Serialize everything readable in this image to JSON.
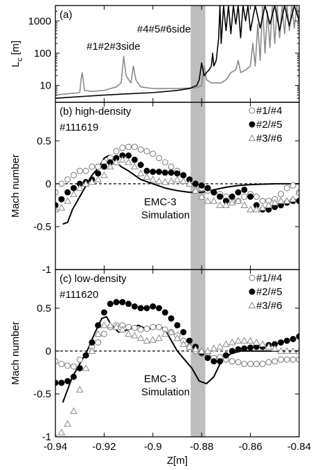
{
  "chart_data": [
    {
      "type": "line",
      "label": "(a)",
      "y_label": "L",
      "y_label_sub": "c",
      "y_label_unit": "[m]",
      "log_y": true,
      "ylim": [
        3,
        3000
      ],
      "yticks": [
        10,
        100,
        1000
      ],
      "xlim": [
        -0.94,
        -0.84
      ],
      "xticks": [
        -0.94,
        -0.92,
        -0.9,
        -0.88,
        -0.86,
        -0.84
      ],
      "highlight": [
        -0.8845,
        -0.8785
      ],
      "series": [
        {
          "name": "#1#2#3side",
          "color": "#8a8a8a",
          "x": [
            -0.94,
            -0.935,
            -0.93,
            -0.9295,
            -0.929,
            -0.928,
            -0.925,
            -0.92,
            -0.915,
            -0.913,
            -0.912,
            -0.911,
            -0.909,
            -0.908,
            -0.907,
            -0.905,
            -0.9,
            -0.89,
            -0.882,
            -0.88,
            -0.879,
            -0.878,
            -0.876,
            -0.872,
            -0.87,
            -0.868,
            -0.866,
            -0.865,
            -0.864,
            -0.862,
            -0.86,
            -0.859,
            -0.858,
            -0.857,
            -0.856,
            -0.855,
            -0.854,
            -0.853,
            -0.852,
            -0.851,
            -0.85,
            -0.849,
            -0.848,
            -0.847,
            -0.846,
            -0.845,
            -0.844,
            -0.843,
            -0.842,
            -0.841,
            -0.84
          ],
          "values": [
            5,
            5.5,
            6,
            15,
            25,
            7,
            6.5,
            7,
            9,
            12,
            80,
            20,
            12,
            40,
            15,
            9,
            8,
            8,
            8.5,
            10,
            40,
            15,
            12,
            12,
            15,
            25,
            30,
            60,
            25,
            30,
            40,
            200,
            40,
            800,
            60,
            3000,
            100,
            2000,
            150,
            3000,
            200,
            3000,
            300,
            3000,
            400,
            3000,
            500,
            3000,
            600,
            3000,
            800
          ]
        },
        {
          "name": "#4#5#6side",
          "color": "#000000",
          "x": [
            -0.94,
            -0.93,
            -0.92,
            -0.91,
            -0.9,
            -0.89,
            -0.885,
            -0.882,
            -0.881,
            -0.88,
            -0.879,
            -0.878,
            -0.877,
            -0.876,
            -0.8755,
            -0.875,
            -0.874,
            -0.873,
            -0.8725,
            -0.872,
            -0.871,
            -0.87,
            -0.869,
            -0.868,
            -0.867,
            -0.866,
            -0.865,
            -0.864,
            -0.863,
            -0.862,
            -0.861,
            -0.86,
            -0.858,
            -0.856,
            -0.854,
            -0.852,
            -0.85,
            -0.848,
            -0.846,
            -0.844,
            -0.842,
            -0.84
          ],
          "values": [
            4,
            4.5,
            5,
            5.5,
            6,
            7,
            8,
            10,
            15,
            50,
            20,
            25,
            30,
            40,
            100,
            40,
            60,
            300,
            3000,
            200,
            3000,
            500,
            3000,
            400,
            3000,
            800,
            3000,
            300,
            3000,
            1000,
            3000,
            500,
            3000,
            600,
            3000,
            800,
            3000,
            500,
            3000,
            700,
            3000,
            1000
          ]
        }
      ]
    },
    {
      "type": "scatter",
      "label": "(b) high-density",
      "shot": "#111619",
      "y_label": "Mach number",
      "ylim": [
        -1,
        0.95
      ],
      "yticks": [
        -1,
        -0.5,
        0,
        0.5
      ],
      "zero_line": true,
      "legend": "upper right",
      "xlim": [
        -0.94,
        -0.84
      ],
      "xticks": [
        -0.94,
        -0.92,
        -0.9,
        -0.88,
        -0.86,
        -0.84
      ],
      "highlight": [
        -0.8845,
        -0.8785
      ],
      "x": [
        -0.94,
        -0.9375,
        -0.935,
        -0.9325,
        -0.93,
        -0.9275,
        -0.925,
        -0.9225,
        -0.92,
        -0.9175,
        -0.915,
        -0.9125,
        -0.91,
        -0.9075,
        -0.905,
        -0.9025,
        -0.9,
        -0.8975,
        -0.895,
        -0.8925,
        -0.89,
        -0.8875,
        -0.885,
        -0.8825,
        -0.88,
        -0.8775,
        -0.875,
        -0.8725,
        -0.87,
        -0.8675,
        -0.865,
        -0.8625,
        -0.86,
        -0.8575,
        -0.855,
        -0.8525,
        -0.85,
        -0.8475,
        -0.845,
        -0.8425,
        -0.84
      ],
      "series": [
        {
          "name": "#1/#4",
          "marker": "open-circle",
          "color": "#777777",
          "values": [
            -0.1,
            0,
            0.05,
            0.1,
            0.15,
            0.15,
            0.2,
            0.2,
            0.25,
            0.3,
            0.38,
            0.42,
            0.43,
            0.43,
            0.4,
            0.38,
            0.35,
            0.3,
            0.25,
            0.2,
            0.15,
            0.1,
            0.05,
            0,
            -0.05,
            -0.08,
            -0.1,
            -0.12,
            -0.15,
            -0.2,
            -0.2,
            -0.15,
            -0.12,
            -0.15,
            -0.2,
            -0.2,
            -0.18,
            -0.12,
            -0.05,
            -0.02,
            -0.1
          ]
        },
        {
          "name": "#2/#5",
          "marker": "filled-circle",
          "color": "#000000",
          "values": [
            -0.25,
            -0.18,
            -0.1,
            -0.05,
            0,
            0.02,
            0.05,
            0.12,
            0.2,
            0.25,
            0.3,
            0.33,
            0.33,
            0.28,
            0.22,
            0.15,
            0.14,
            0.14,
            0.13,
            0.13,
            0.12,
            0.1,
            0.05,
            0,
            -0.02,
            -0.05,
            -0.1,
            -0.15,
            -0.2,
            -0.15,
            -0.1,
            -0.07,
            -0.15,
            -0.25,
            -0.3,
            -0.3,
            -0.27,
            -0.25,
            -0.22,
            -0.2,
            -0.2
          ]
        },
        {
          "name": "#3/#6",
          "marker": "triangle",
          "color": "#888888",
          "values": [
            -0.3,
            -0.28,
            -0.2,
            -0.12,
            -0.05,
            0,
            0.02,
            0.05,
            0.1,
            0.2,
            0.25,
            0.28,
            0.25,
            0.2,
            0.12,
            0.08,
            0.05,
            0.03,
            0.02,
            0.03,
            0.05,
            0.03,
            0,
            -0.08,
            -0.15,
            -0.2,
            -0.2,
            -0.25,
            -0.25,
            -0.22,
            -0.2,
            -0.25,
            -0.3,
            -0.3,
            -0.28,
            -0.25,
            -0.22,
            -0.2,
            -0.2,
            -0.18,
            -0.1
          ]
        }
      ],
      "simulation": {
        "color": "#000000",
        "x": [
          -0.937,
          -0.935,
          -0.933,
          -0.93,
          -0.927,
          -0.925,
          -0.922,
          -0.92,
          -0.918,
          -0.916,
          -0.913,
          -0.91,
          -0.905,
          -0.9,
          -0.895,
          -0.89,
          -0.885,
          -0.88,
          -0.875,
          -0.87,
          -0.865,
          -0.86,
          -0.85,
          -0.84
        ],
        "values": [
          -0.47,
          -0.45,
          -0.3,
          -0.15,
          0,
          0.1,
          0.2,
          0.3,
          0.33,
          0.28,
          0.2,
          0.15,
          0.05,
          0,
          -0.05,
          -0.08,
          -0.1,
          -0.1,
          -0.07,
          -0.04,
          -0.02,
          -0.01,
          0,
          0
        ]
      },
      "annotation": [
        "EMC-3",
        "Simulation"
      ]
    },
    {
      "type": "scatter",
      "label": "(c) low-density",
      "shot": "#111620",
      "y_label": "Mach number",
      "x_label": "Z[m]",
      "ylim": [
        -1,
        0.95
      ],
      "yticks": [
        -1,
        -0.5,
        0,
        0.5
      ],
      "zero_line": true,
      "legend": "upper right",
      "xlim": [
        -0.94,
        -0.84
      ],
      "xticks": [
        -0.94,
        -0.92,
        -0.9,
        -0.88,
        -0.86,
        -0.84
      ],
      "highlight": [
        -0.8845,
        -0.8785
      ],
      "x": [
        -0.94,
        -0.9375,
        -0.935,
        -0.9325,
        -0.93,
        -0.9275,
        -0.925,
        -0.9225,
        -0.92,
        -0.9175,
        -0.915,
        -0.9125,
        -0.91,
        -0.9075,
        -0.905,
        -0.9025,
        -0.9,
        -0.8975,
        -0.895,
        -0.8925,
        -0.89,
        -0.8875,
        -0.885,
        -0.8825,
        -0.88,
        -0.8775,
        -0.875,
        -0.8725,
        -0.87,
        -0.8675,
        -0.865,
        -0.8625,
        -0.86,
        -0.8575,
        -0.855,
        -0.8525,
        -0.85,
        -0.8475,
        -0.845,
        -0.8425,
        -0.84
      ],
      "series": [
        {
          "name": "#1/#4",
          "marker": "open-circle",
          "color": "#777777",
          "values": [
            -0.12,
            -0.15,
            -0.17,
            -0.18,
            -0.1,
            -0.05,
            0.05,
            0.1,
            0.2,
            0.28,
            0.3,
            0.3,
            0.28,
            0.27,
            0.25,
            0.26,
            0.28,
            0.28,
            0.25,
            0.22,
            0.18,
            0.12,
            0.05,
            0,
            -0.03,
            -0.06,
            -0.08,
            -0.07,
            -0.1,
            -0.12,
            -0.13,
            -0.15,
            -0.15,
            -0.15,
            -0.15,
            -0.13,
            -0.12,
            -0.1,
            -0.1,
            -0.1,
            -0.1
          ]
        },
        {
          "name": "#2/#5",
          "marker": "filled-circle",
          "color": "#000000",
          "values": [
            -0.37,
            -0.37,
            -0.35,
            -0.3,
            -0.2,
            -0.05,
            0.1,
            0.3,
            0.45,
            0.55,
            0.57,
            0.57,
            0.55,
            0.52,
            0.5,
            0.5,
            0.52,
            0.5,
            0.45,
            0.38,
            0.3,
            0.22,
            0.12,
            0.05,
            -0.02,
            -0.08,
            -0.12,
            -0.12,
            -0.05,
            0,
            0.02,
            0.03,
            0.04,
            0.05,
            0.05,
            0.07,
            0.08,
            0.1,
            0.12,
            0.14,
            0.17
          ]
        },
        {
          "name": "#3/#6",
          "marker": "triangle",
          "color": "#888888",
          "values": [
            -1,
            -0.95,
            -0.85,
            -0.7,
            -0.45,
            -0.2,
            0,
            0.2,
            0.3,
            0.3,
            0.28,
            0.25,
            0.2,
            0.18,
            0.15,
            0.12,
            0.13,
            0.15,
            0.2,
            0.22,
            0.15,
            0.08,
            0.05,
            0.02,
            0,
            0,
            0.03,
            0.05,
            0.08,
            0.1,
            0.12,
            0.12,
            0.12,
            0.1,
            0.08,
            0.05,
            0.03,
            0,
            0,
            0,
            0
          ]
        }
      ],
      "simulation": {
        "color": "#000000",
        "x": [
          -0.937,
          -0.935,
          -0.933,
          -0.93,
          -0.927,
          -0.924,
          -0.921,
          -0.919,
          -0.917,
          -0.914,
          -0.91,
          -0.906,
          -0.902,
          -0.898,
          -0.895,
          -0.893,
          -0.89,
          -0.887,
          -0.884,
          -0.881,
          -0.878,
          -0.875,
          -0.872,
          -0.868,
          -0.864,
          -0.86,
          -0.85,
          -0.84
        ],
        "values": [
          -0.6,
          -0.45,
          -0.3,
          -0.15,
          0,
          0.2,
          0.38,
          0.4,
          0.3,
          0.22,
          0.25,
          0.3,
          0.25,
          0.3,
          0.25,
          0.15,
          0,
          -0.1,
          -0.2,
          -0.35,
          -0.38,
          -0.3,
          -0.12,
          -0.03,
          0,
          0,
          0,
          0
        ]
      },
      "annotation": [
        "EMC-3",
        "Simulation"
      ]
    }
  ]
}
